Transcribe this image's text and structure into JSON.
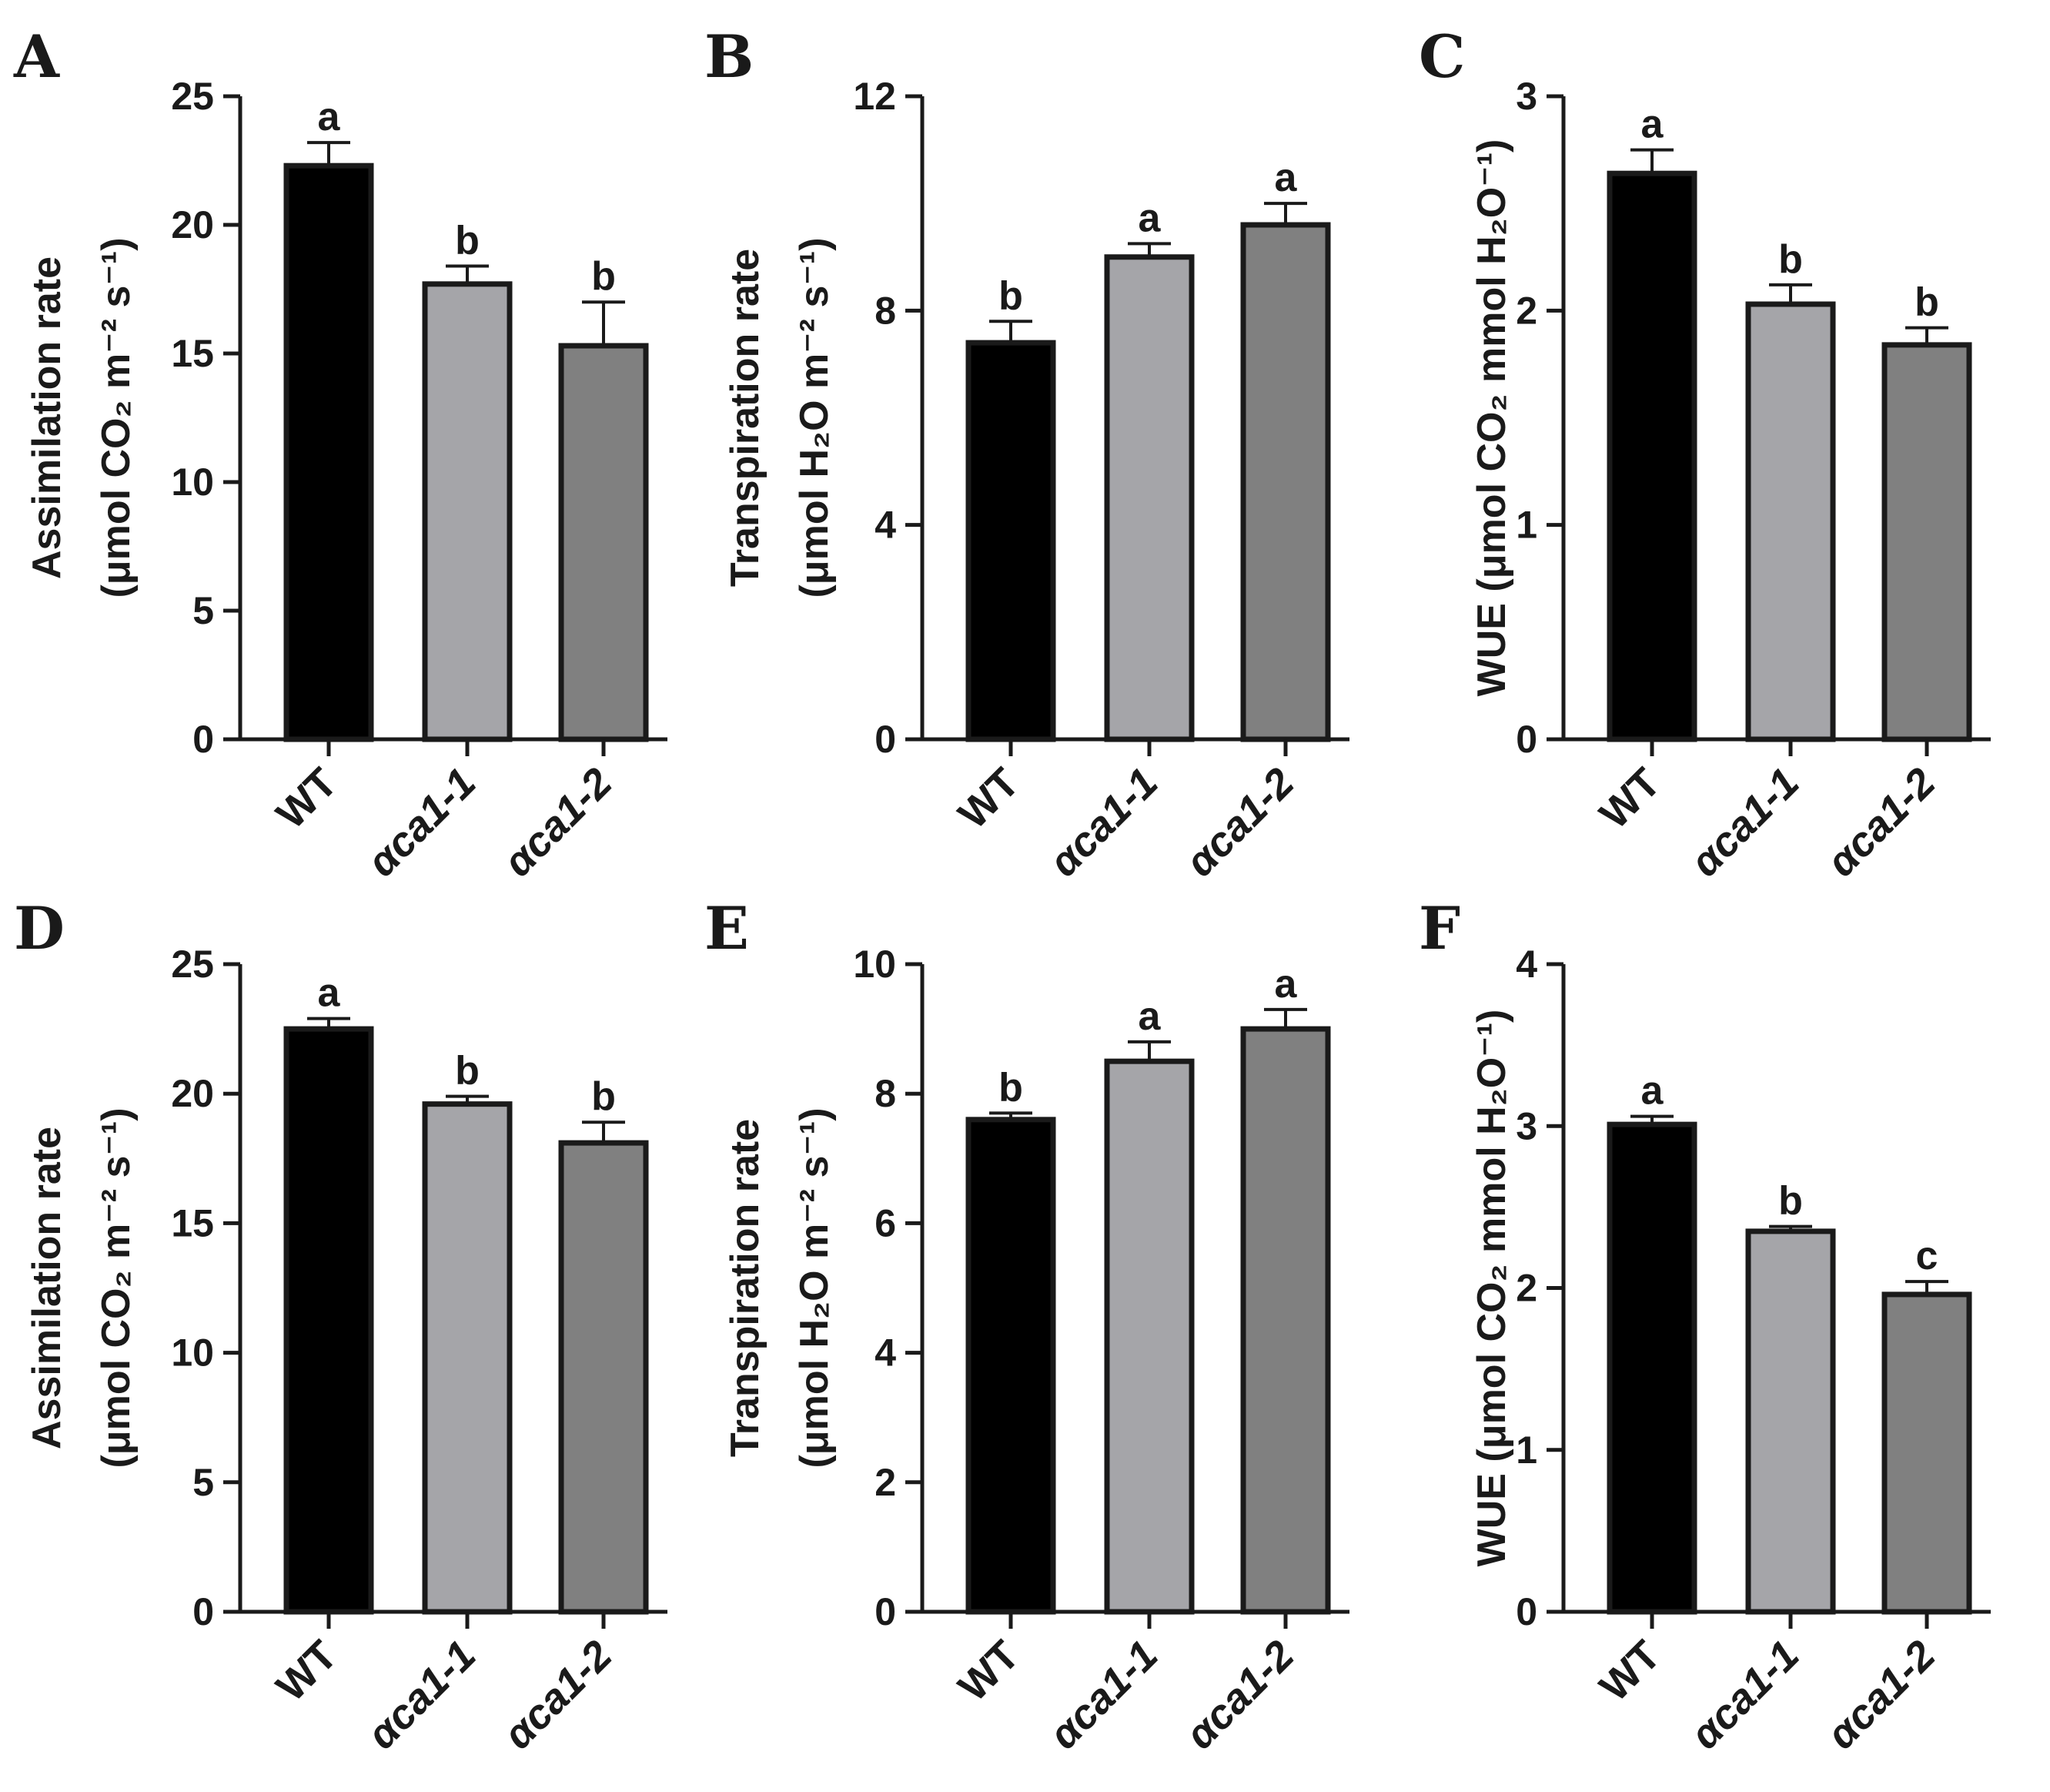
{
  "figure_colors": {
    "axis": "#1a1a1a"
  },
  "chart_data": [
    {
      "panel": "A",
      "type": "bar",
      "categories": [
        "WT",
        "αca1-1",
        "αca1-2"
      ],
      "values": [
        22.3,
        17.7,
        15.3
      ],
      "errors": [
        0.9,
        0.7,
        1.7
      ],
      "significance": [
        "a",
        "b",
        "b"
      ],
      "bar_colors": [
        "#000000",
        "#a5a5a9",
        "#808080"
      ],
      "ylim": [
        0,
        25
      ],
      "yticks": [
        0,
        5,
        10,
        15,
        20,
        25
      ],
      "ylabel_line1": "Assimilation rate",
      "ylabel_line2": "(μmol CO₂ m⁻² s⁻¹)"
    },
    {
      "panel": "B",
      "type": "bar",
      "categories": [
        "WT",
        "αca1-1",
        "αca1-2"
      ],
      "values": [
        7.4,
        9.0,
        9.6
      ],
      "errors": [
        0.4,
        0.25,
        0.4
      ],
      "significance": [
        "b",
        "a",
        "a"
      ],
      "bar_colors": [
        "#000000",
        "#a5a5a9",
        "#808080"
      ],
      "ylim": [
        0,
        12
      ],
      "yticks": [
        0,
        4,
        8,
        12
      ],
      "ylabel_line1": "Transpiration rate",
      "ylabel_line2": "(μmol H₂O m⁻² s⁻¹)"
    },
    {
      "panel": "C",
      "type": "bar",
      "categories": [
        "WT",
        "αca1-1",
        "αca1-2"
      ],
      "values": [
        2.64,
        2.03,
        1.84
      ],
      "errors": [
        0.11,
        0.09,
        0.08
      ],
      "significance": [
        "a",
        "b",
        "b"
      ],
      "bar_colors": [
        "#000000",
        "#a5a5a9",
        "#808080"
      ],
      "ylim": [
        0,
        3
      ],
      "yticks": [
        0,
        1,
        2,
        3
      ],
      "ylabel_line1": "WUE (μmol CO₂ mmol H₂O⁻¹)",
      "ylabel_line2": ""
    },
    {
      "panel": "D",
      "type": "bar",
      "categories": [
        "WT",
        "αca1-1",
        "αca1-2"
      ],
      "values": [
        22.5,
        19.6,
        18.1
      ],
      "errors": [
        0.4,
        0.3,
        0.8
      ],
      "significance": [
        "a",
        "b",
        "b"
      ],
      "bar_colors": [
        "#000000",
        "#a5a5a9",
        "#808080"
      ],
      "ylim": [
        0,
        25
      ],
      "yticks": [
        0,
        5,
        10,
        15,
        20,
        25
      ],
      "ylabel_line1": "Assimilation rate",
      "ylabel_line2": "(μmol CO₂ m⁻² s⁻¹)"
    },
    {
      "panel": "E",
      "type": "bar",
      "categories": [
        "WT",
        "αca1-1",
        "αca1-2"
      ],
      "values": [
        7.6,
        8.5,
        9.0
      ],
      "errors": [
        0.1,
        0.3,
        0.3
      ],
      "significance": [
        "b",
        "a",
        "a"
      ],
      "bar_colors": [
        "#000000",
        "#a5a5a9",
        "#808080"
      ],
      "ylim": [
        0,
        10
      ],
      "yticks": [
        0,
        2,
        4,
        6,
        8,
        10
      ],
      "ylabel_line1": "Transpiration rate",
      "ylabel_line2": "(μmol H₂O m⁻² s⁻¹)"
    },
    {
      "panel": "F",
      "type": "bar",
      "categories": [
        "WT",
        "αca1-1",
        "αca1-2"
      ],
      "values": [
        3.01,
        2.35,
        1.96
      ],
      "errors": [
        0.05,
        0.03,
        0.08
      ],
      "significance": [
        "a",
        "b",
        "c"
      ],
      "bar_colors": [
        "#000000",
        "#a5a5a9",
        "#808080"
      ],
      "ylim": [
        0,
        4
      ],
      "yticks": [
        0,
        1,
        2,
        3,
        4
      ],
      "ylabel_line1": "WUE (μmol CO₂ mmol H₂O⁻¹)",
      "ylabel_line2": ""
    }
  ]
}
